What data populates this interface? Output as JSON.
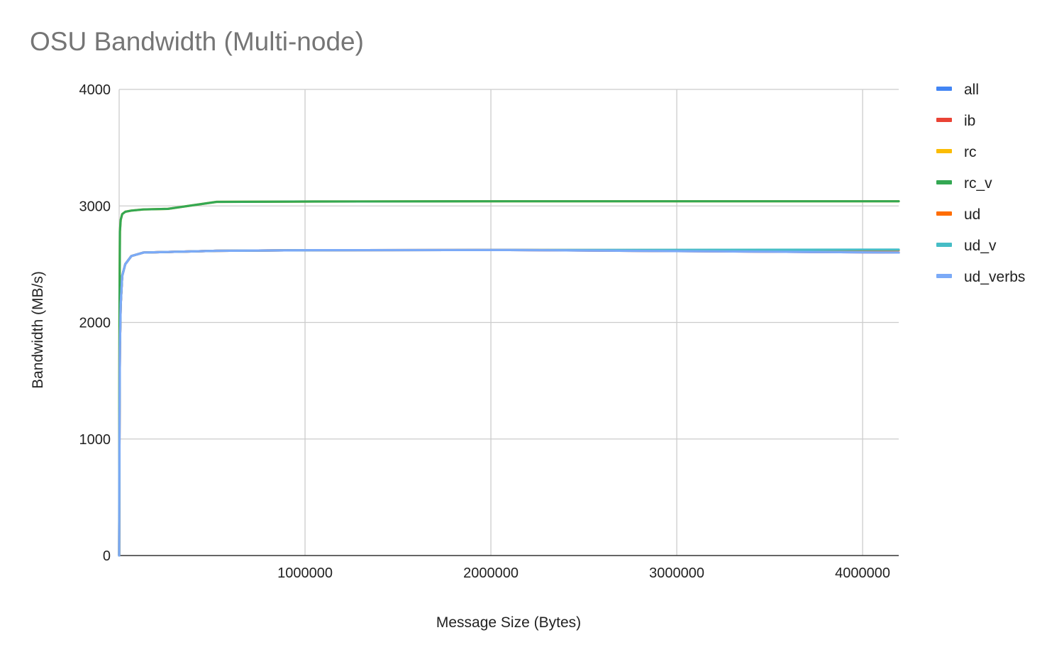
{
  "chart_data": {
    "type": "line",
    "title": "OSU Bandwidth (Multi-node)",
    "xlabel": "Message Size (Bytes)",
    "ylabel": "Bandwidth (MB/s)",
    "xlim": [
      0,
      4194304
    ],
    "ylim": [
      0,
      4000
    ],
    "x_ticks": [
      1000000,
      2000000,
      3000000,
      4000000
    ],
    "y_ticks": [
      0,
      1000,
      2000,
      3000,
      4000
    ],
    "grid": true,
    "legend_position": "right",
    "series": [
      {
        "name": "all",
        "color": "#4285F4",
        "x": [
          1,
          2,
          4,
          8,
          16,
          32,
          64,
          128,
          256,
          512,
          1024,
          2048,
          4096,
          8192,
          16384,
          32768,
          65536,
          131072,
          262144,
          524288,
          1048576,
          2097152,
          4194304
        ],
        "y": [
          1,
          2,
          3,
          6,
          12,
          25,
          50,
          100,
          200,
          380,
          700,
          1200,
          1800,
          2150,
          2400,
          2500,
          2570,
          2600,
          2605,
          2615,
          2620,
          2622,
          2600
        ]
      },
      {
        "name": "ib",
        "color": "#EA4335",
        "x": [
          1,
          2,
          4,
          8,
          16,
          32,
          64,
          128,
          256,
          512,
          1024,
          2048,
          4096,
          8192,
          16384,
          32768,
          65536,
          131072,
          262144,
          524288,
          1048576,
          2097152,
          4194304
        ],
        "y": [
          1,
          2,
          3,
          6,
          12,
          25,
          50,
          100,
          200,
          380,
          700,
          1200,
          1800,
          2150,
          2400,
          2500,
          2570,
          2600,
          2605,
          2615,
          2620,
          2622,
          2600
        ]
      },
      {
        "name": "rc",
        "color": "#FBBC04",
        "x": [
          1,
          2,
          4,
          8,
          16,
          32,
          64,
          128,
          256,
          512,
          1024,
          2048,
          4096,
          8192,
          16384,
          32768,
          65536,
          131072,
          262144,
          524288,
          1048576,
          2097152,
          4194304
        ],
        "y": [
          2,
          4,
          8,
          15,
          30,
          60,
          120,
          240,
          480,
          900,
          1500,
          2200,
          2780,
          2880,
          2930,
          2950,
          2960,
          2970,
          2975,
          3035,
          3038,
          3040,
          3040
        ]
      },
      {
        "name": "rc_v",
        "color": "#34A853",
        "x": [
          1,
          2,
          4,
          8,
          16,
          32,
          64,
          128,
          256,
          512,
          1024,
          2048,
          4096,
          8192,
          16384,
          32768,
          65536,
          131072,
          262144,
          524288,
          1048576,
          2097152,
          4194304
        ],
        "y": [
          2,
          4,
          8,
          15,
          30,
          60,
          120,
          240,
          480,
          900,
          1500,
          2200,
          2780,
          2880,
          2930,
          2950,
          2960,
          2970,
          2975,
          3035,
          3038,
          3040,
          3040
        ]
      },
      {
        "name": "ud",
        "color": "#FF6D01",
        "x": [
          1,
          2,
          4,
          8,
          16,
          32,
          64,
          128,
          256,
          512,
          1024,
          2048,
          4096,
          8192,
          16384,
          32768,
          65536,
          131072,
          262144,
          524288,
          1048576,
          2097152,
          4194304
        ],
        "y": [
          1,
          2,
          3,
          6,
          12,
          25,
          50,
          100,
          200,
          380,
          700,
          1200,
          1800,
          2150,
          2400,
          2500,
          2570,
          2600,
          2605,
          2615,
          2620,
          2622,
          2620
        ]
      },
      {
        "name": "ud_v",
        "color": "#46BDC6",
        "x": [
          1,
          2,
          4,
          8,
          16,
          32,
          64,
          128,
          256,
          512,
          1024,
          2048,
          4096,
          8192,
          16384,
          32768,
          65536,
          131072,
          262144,
          524288,
          1048576,
          2097152,
          4194304
        ],
        "y": [
          1,
          2,
          3,
          6,
          12,
          25,
          50,
          100,
          200,
          380,
          700,
          1200,
          1800,
          2150,
          2400,
          2500,
          2570,
          2600,
          2605,
          2615,
          2620,
          2622,
          2625
        ]
      },
      {
        "name": "ud_verbs",
        "color": "#7BAAF7",
        "x": [
          1,
          2,
          4,
          8,
          16,
          32,
          64,
          128,
          256,
          512,
          1024,
          2048,
          4096,
          8192,
          16384,
          32768,
          65536,
          131072,
          262144,
          524288,
          1048576,
          2097152,
          4194304
        ],
        "y": [
          1,
          2,
          3,
          6,
          12,
          25,
          50,
          100,
          200,
          380,
          700,
          1200,
          1800,
          2150,
          2400,
          2500,
          2570,
          2600,
          2605,
          2615,
          2620,
          2622,
          2600
        ]
      }
    ]
  }
}
